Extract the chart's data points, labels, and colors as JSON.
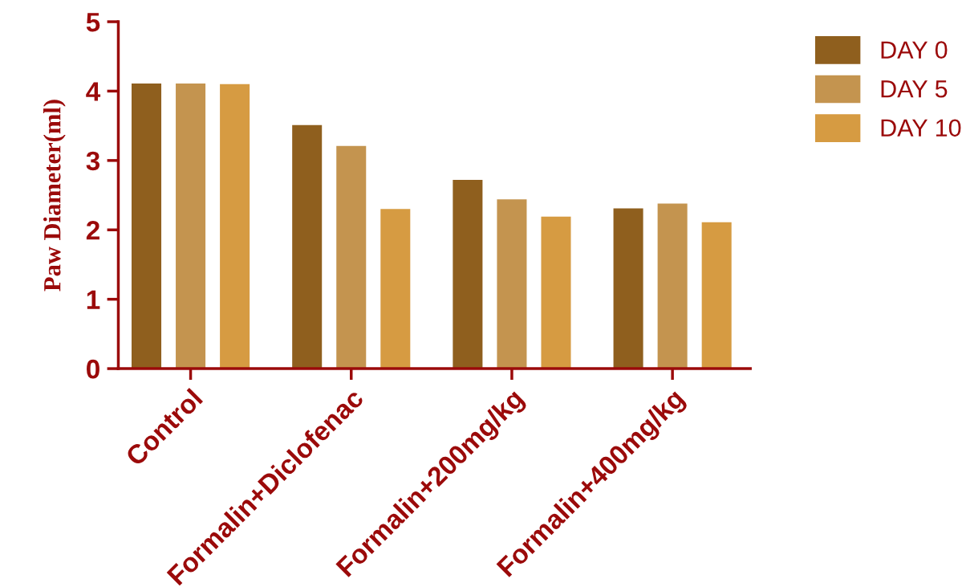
{
  "chart_data": {
    "type": "bar",
    "ylabel": "Paw Diameter(ml)",
    "categories": [
      "Control",
      "Formalin+Diclofenac",
      "Formalin+200mg/kg",
      "Formalin+400mg/kg"
    ],
    "series": [
      {
        "name": "DAY 0",
        "color": "#8f5f1e",
        "values": [
          4.11,
          3.51,
          2.72,
          2.31
        ]
      },
      {
        "name": "DAY 5",
        "color": "#c4944f",
        "values": [
          4.11,
          3.21,
          2.44,
          2.38
        ]
      },
      {
        "name": "DAY 10",
        "color": "#d69b42",
        "values": [
          4.1,
          2.3,
          2.19,
          2.11
        ]
      }
    ],
    "ylim": [
      0,
      5
    ],
    "yticks": [
      0,
      1,
      2,
      3,
      4,
      5
    ],
    "grid": false,
    "legend": "top right"
  }
}
